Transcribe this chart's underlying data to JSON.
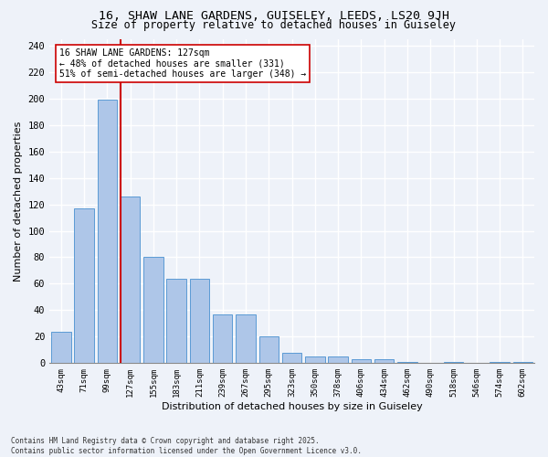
{
  "title_line1": "16, SHAW LANE GARDENS, GUISELEY, LEEDS, LS20 9JH",
  "title_line2": "Size of property relative to detached houses in Guiseley",
  "xlabel": "Distribution of detached houses by size in Guiseley",
  "ylabel": "Number of detached properties",
  "categories": [
    "43sqm",
    "71sqm",
    "99sqm",
    "127sqm",
    "155sqm",
    "183sqm",
    "211sqm",
    "239sqm",
    "267sqm",
    "295sqm",
    "323sqm",
    "350sqm",
    "378sqm",
    "406sqm",
    "434sqm",
    "462sqm",
    "490sqm",
    "518sqm",
    "546sqm",
    "574sqm",
    "602sqm"
  ],
  "values": [
    24,
    117,
    199,
    126,
    80,
    64,
    64,
    37,
    37,
    20,
    8,
    5,
    5,
    3,
    3,
    1,
    0,
    1,
    0,
    1,
    1
  ],
  "bar_color": "#aec6e8",
  "bar_edge_color": "#5b9bd5",
  "background_color": "#eef2f9",
  "grid_color": "#ffffff",
  "vline_color": "#cc0000",
  "annotation_text": "16 SHAW LANE GARDENS: 127sqm\n← 48% of detached houses are smaller (331)\n51% of semi-detached houses are larger (348) →",
  "annotation_box_color": "#ffffff",
  "annotation_box_edge": "#cc0000",
  "footer_text": "Contains HM Land Registry data © Crown copyright and database right 2025.\nContains public sector information licensed under the Open Government Licence v3.0.",
  "ylim": [
    0,
    245
  ],
  "yticks": [
    0,
    20,
    40,
    60,
    80,
    100,
    120,
    140,
    160,
    180,
    200,
    220,
    240
  ]
}
